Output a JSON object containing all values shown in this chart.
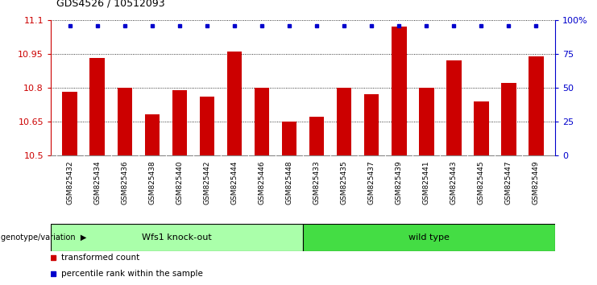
{
  "title": "GDS4526 / 10512093",
  "categories": [
    "GSM825432",
    "GSM825434",
    "GSM825436",
    "GSM825438",
    "GSM825440",
    "GSM825442",
    "GSM825444",
    "GSM825446",
    "GSM825448",
    "GSM825433",
    "GSM825435",
    "GSM825437",
    "GSM825439",
    "GSM825441",
    "GSM825443",
    "GSM825445",
    "GSM825447",
    "GSM825449"
  ],
  "bar_values": [
    10.78,
    10.93,
    10.8,
    10.68,
    10.79,
    10.76,
    10.96,
    10.8,
    10.65,
    10.67,
    10.8,
    10.77,
    11.07,
    10.8,
    10.92,
    10.74,
    10.82,
    10.94
  ],
  "percentile_values": [
    100,
    100,
    100,
    100,
    100,
    100,
    100,
    100,
    100,
    100,
    100,
    100,
    100,
    100,
    100,
    100,
    100,
    100
  ],
  "bar_color": "#cc0000",
  "percentile_color": "#0000cc",
  "ymin": 10.5,
  "ymax": 11.1,
  "yticks": [
    10.5,
    10.65,
    10.8,
    10.95,
    11.1
  ],
  "ytick_labels": [
    "10.5",
    "10.65",
    "10.8",
    "10.95",
    "11.1"
  ],
  "right_yticks": [
    0,
    25,
    50,
    75,
    100
  ],
  "right_yticklabels": [
    "0",
    "25",
    "50",
    "75",
    "100%"
  ],
  "groups": [
    {
      "label": "Wfs1 knock-out",
      "start": 0,
      "end": 9,
      "color": "#aaffaa"
    },
    {
      "label": "wild type",
      "start": 9,
      "end": 18,
      "color": "#44dd44"
    }
  ],
  "group_label_prefix": "genotype/variation",
  "legend_items": [
    {
      "label": "transformed count",
      "color": "#cc0000"
    },
    {
      "label": "percentile rank within the sample",
      "color": "#0000cc"
    }
  ],
  "background_color": "#ffffff",
  "plot_bg_color": "#ffffff",
  "grid_color": "#000000",
  "tick_label_area_color": "#d3d3d3",
  "n_bars": 18
}
